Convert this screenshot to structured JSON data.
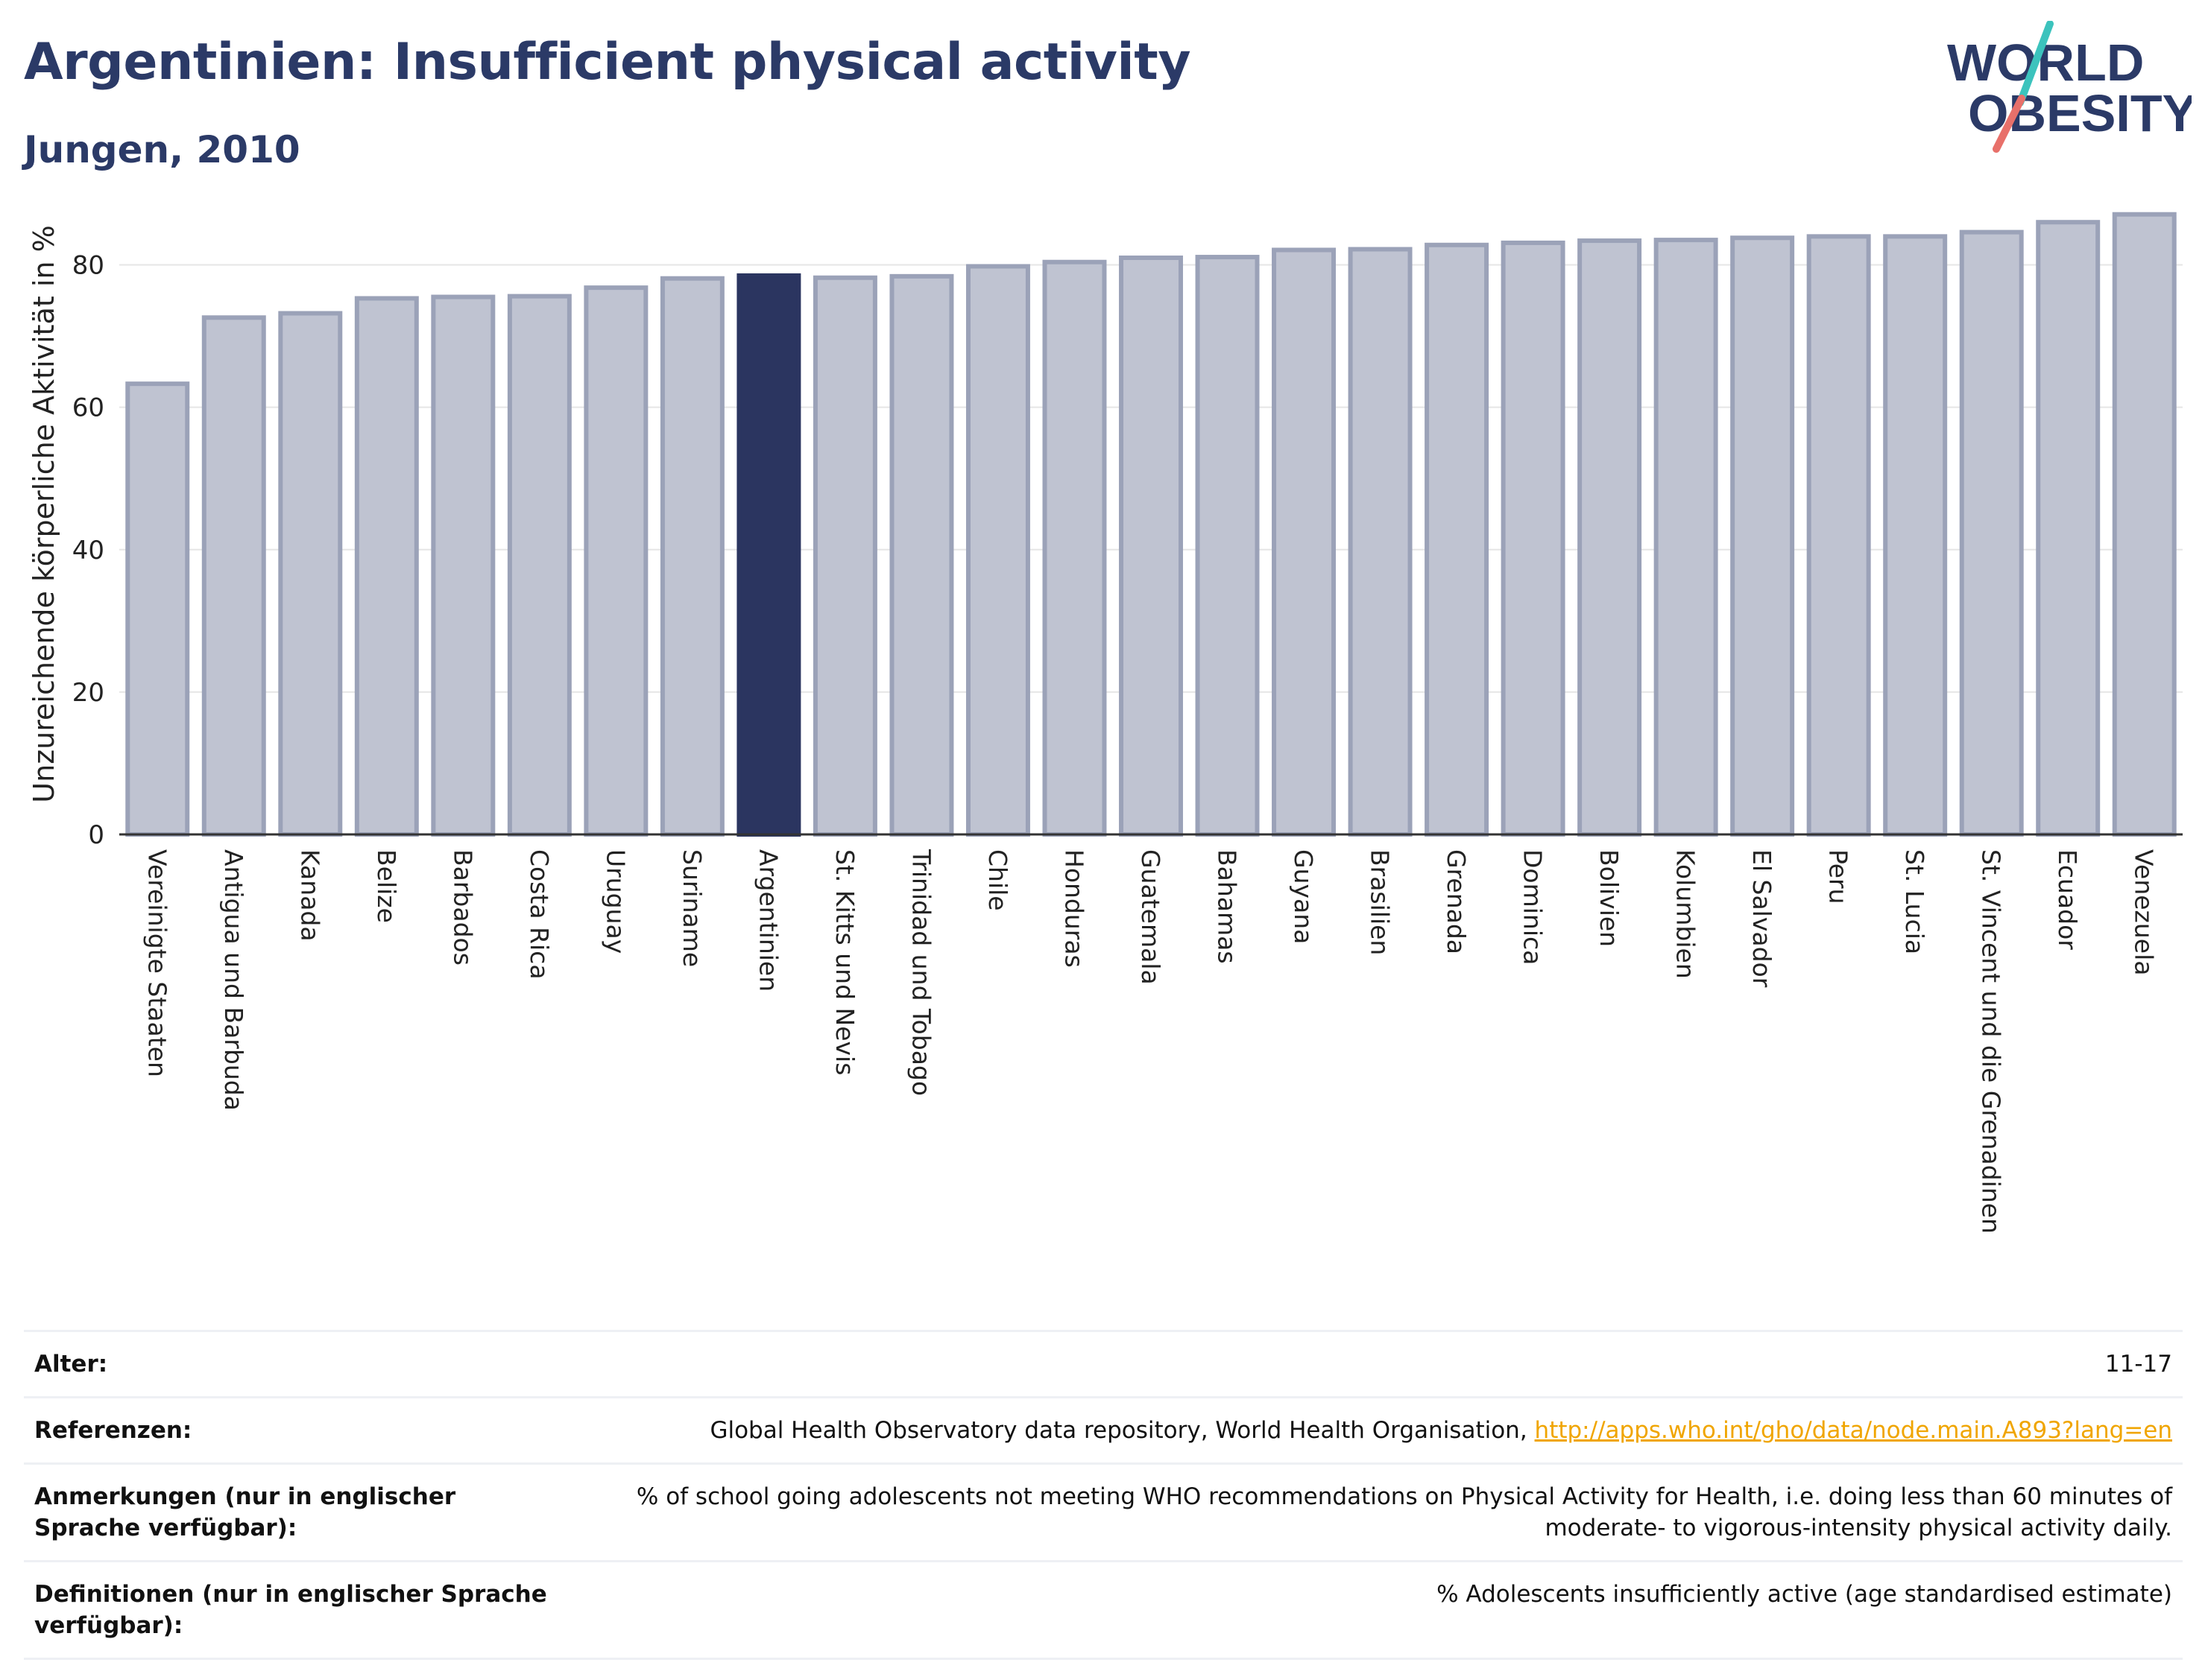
{
  "header": {
    "title": "Argentinien: Insufficient physical activity",
    "subtitle": "Jungen, 2010"
  },
  "logo": {
    "line1": "WORLD",
    "line2": "OBESITY",
    "colors": {
      "text": "#2b3a67",
      "slash_teal": "#3cc3bd",
      "slash_red": "#e8706a"
    }
  },
  "colors": {
    "bar_fill": "#bfc3d1",
    "bar_stroke": "#9ba2b8",
    "highlight_fill": "#2b3560",
    "grid": "#e6e6e6",
    "axis": "#333333",
    "link": "#f0a500"
  },
  "chart_data": {
    "type": "bar",
    "title": "Argentinien: Insufficient physical activity",
    "subtitle": "Jungen, 2010",
    "xlabel": "",
    "ylabel": "Unzureichende körperliche Aktivität in %",
    "ylim": [
      0,
      90
    ],
    "yticks": [
      0,
      20,
      40,
      60,
      80
    ],
    "grid": true,
    "highlight": "Argentinien",
    "categories": [
      "Vereinigte Staaten",
      "Antigua und Barbuda",
      "Kanada",
      "Belize",
      "Barbados",
      "Costa Rica",
      "Uruguay",
      "Suriname",
      "Argentinien",
      "St. Kitts und Nevis",
      "Trinidad und Tobago",
      "Chile",
      "Honduras",
      "Guatemala",
      "Bahamas",
      "Guyana",
      "Brasilien",
      "Grenada",
      "Dominica",
      "Bolivien",
      "Kolumbien",
      "El Salvador",
      "Peru",
      "St. Lucia",
      "St. Vincent und die Grenadinen",
      "Ecuador",
      "Venezuela"
    ],
    "values": [
      63.3,
      72.6,
      73.2,
      75.3,
      75.5,
      75.6,
      76.8,
      78.1,
      78.5,
      78.2,
      78.4,
      79.8,
      80.4,
      81.0,
      81.1,
      82.1,
      82.2,
      82.8,
      83.1,
      83.4,
      83.5,
      83.8,
      84.0,
      84.0,
      84.6,
      86.0,
      87.1
    ]
  },
  "info": [
    {
      "key": "Alter:",
      "value": "11-17"
    },
    {
      "key": "Referenzen:",
      "value": "Global Health Observatory data repository, World Health Organisation,",
      "link": "http://apps.who.int/gho/data/node.main.A893?lang=en"
    },
    {
      "key": "Anmerkungen (nur in englischer Sprache verfügbar):",
      "value": "% of school going adolescents not meeting WHO recommendations on Physical Activity for Health, i.e. doing less than 60 minutes of moderate- to vigorous-intensity physical activity daily."
    },
    {
      "key": "Definitionen (nur in englischer Sprache verfügbar):",
      "value": "% Adolescents insufficiently active (age standardised estimate)"
    }
  ]
}
